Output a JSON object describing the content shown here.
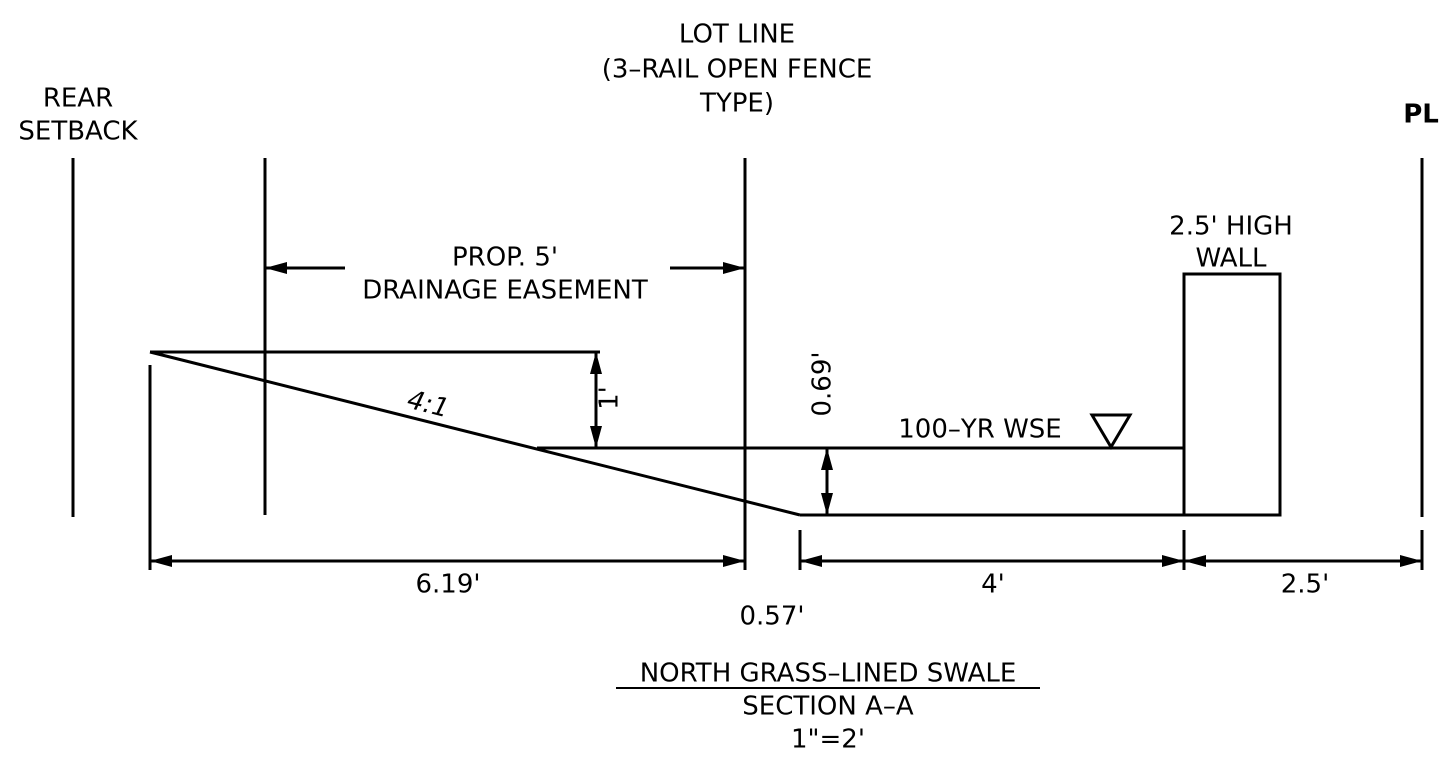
{
  "labels": {
    "lot_line": [
      "LOT LINE",
      "(3–RAIL OPEN FENCE",
      "TYPE)"
    ],
    "rear_setback": [
      "REAR",
      "SETBACK"
    ],
    "property_line": "PL",
    "wall": [
      "2.5' HIGH",
      "WALL"
    ],
    "easement": [
      "PROP. 5'",
      "DRAINAGE EASEMENT"
    ],
    "slope": "4:1",
    "water_surface": "100–YR WSE"
  },
  "dimensions": {
    "freeboard": "1'",
    "depth": "0.69'",
    "slope_width": "6.19'",
    "gap": "0.57'",
    "bottom_width": "4'",
    "wall_offset": "2.5'"
  },
  "title": [
    "NORTH GRASS–LINED SWALE",
    "SECTION A–A",
    "1\"=2'"
  ]
}
